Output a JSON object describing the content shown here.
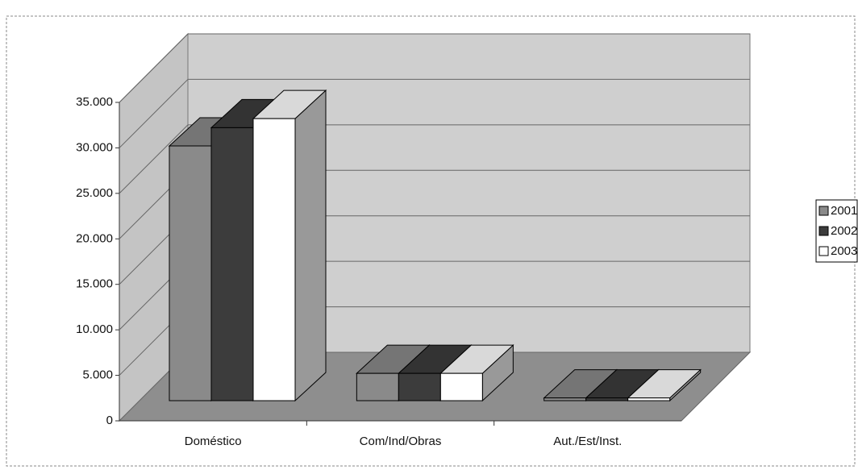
{
  "chart_data": {
    "type": "bar3d",
    "categories": [
      "Doméstico",
      "Com/Ind/Obras",
      "Aut./Est/Inst."
    ],
    "series": [
      {
        "name": "2001",
        "color": "#8a8a8a",
        "values": [
          28000,
          3000,
          300
        ]
      },
      {
        "name": "2002",
        "color": "#3c3c3c",
        "values": [
          30000,
          3000,
          300
        ]
      },
      {
        "name": "2003",
        "color": "#ffffff",
        "values": [
          31000,
          3000,
          300
        ]
      }
    ],
    "ylim": [
      0,
      35000
    ],
    "yticks": [
      0,
      {
        "value": 5000,
        "label": "5.000"
      },
      {
        "value": 10000,
        "label": "10.000"
      },
      {
        "value": 15000,
        "label": "15.000"
      },
      {
        "value": 20000,
        "label": "20.000"
      },
      {
        "value": 25000,
        "label": "25.000"
      },
      {
        "value": 30000,
        "label": "30.000"
      },
      {
        "value": 35000,
        "label": "35.000"
      }
    ],
    "grid": true,
    "legend": "right"
  }
}
